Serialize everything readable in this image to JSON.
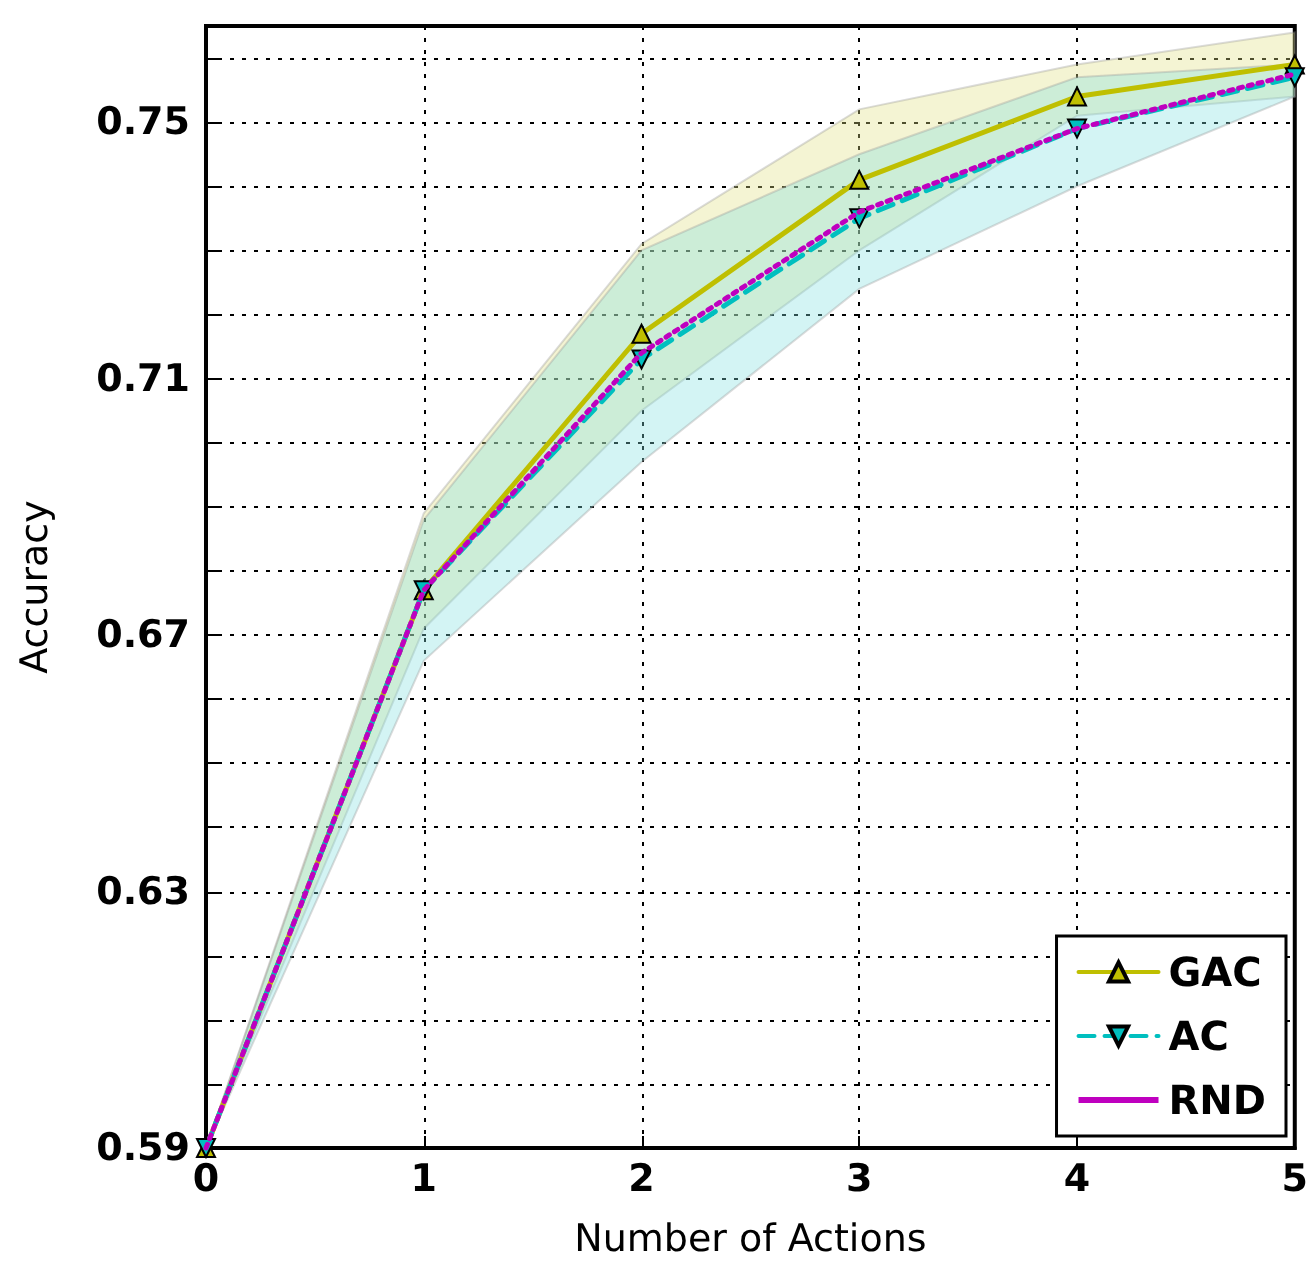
{
  "chart_data": {
    "type": "line",
    "xlabel": "Number of Actions",
    "ylabel": "Accuracy",
    "x": [
      0,
      1,
      2,
      3,
      4,
      5
    ],
    "series": [
      {
        "name": "GAC",
        "color": "#bfbf00",
        "marker": "triangle",
        "line_style": "solid",
        "values": [
          0.59,
          0.677,
          0.717,
          0.741,
          0.754,
          0.759
        ],
        "lower": [
          0.59,
          0.671,
          0.705,
          0.73,
          0.751,
          0.754
        ],
        "upper": [
          0.59,
          0.689,
          0.731,
          0.752,
          0.759,
          0.764
        ]
      },
      {
        "name": "AC",
        "color": "#00bfbf",
        "marker": "triangle-down",
        "line_style": "dashed",
        "values": [
          0.59,
          0.677,
          0.713,
          0.735,
          0.749,
          0.757
        ],
        "lower": [
          0.59,
          0.666,
          0.697,
          0.724,
          0.74,
          0.754
        ],
        "upper": [
          0.59,
          0.688,
          0.73,
          0.745,
          0.757,
          0.759
        ]
      },
      {
        "name": "RND",
        "color": "#bf00bf",
        "marker": "none",
        "line_style": "dotted",
        "values": [
          0.59,
          0.677,
          0.714,
          0.736,
          0.749,
          0.7575
        ]
      }
    ],
    "xlim": [
      0,
      5
    ],
    "xticks": [
      0,
      1,
      2,
      3,
      4,
      5
    ],
    "ylim": [
      0.59,
      0.765
    ],
    "yticks": [
      0.59,
      {
        "value": 0.6,
        "label": null
      },
      {
        "value": 0.61,
        "label": null
      },
      {
        "value": 0.62,
        "label": null
      },
      0.63,
      {
        "value": 0.64,
        "label": null
      },
      {
        "value": 0.65,
        "label": null
      },
      {
        "value": 0.66,
        "label": null
      },
      0.67,
      {
        "value": 0.68,
        "label": null
      },
      {
        "value": 0.69,
        "label": null
      },
      {
        "value": 0.7,
        "label": null
      },
      0.71,
      {
        "value": 0.72,
        "label": null
      },
      {
        "value": 0.73,
        "label": null
      },
      {
        "value": 0.74,
        "label": null
      },
      0.75,
      {
        "value": 0.76,
        "label": null
      }
    ],
    "grid": true,
    "legend": "bottom right"
  }
}
